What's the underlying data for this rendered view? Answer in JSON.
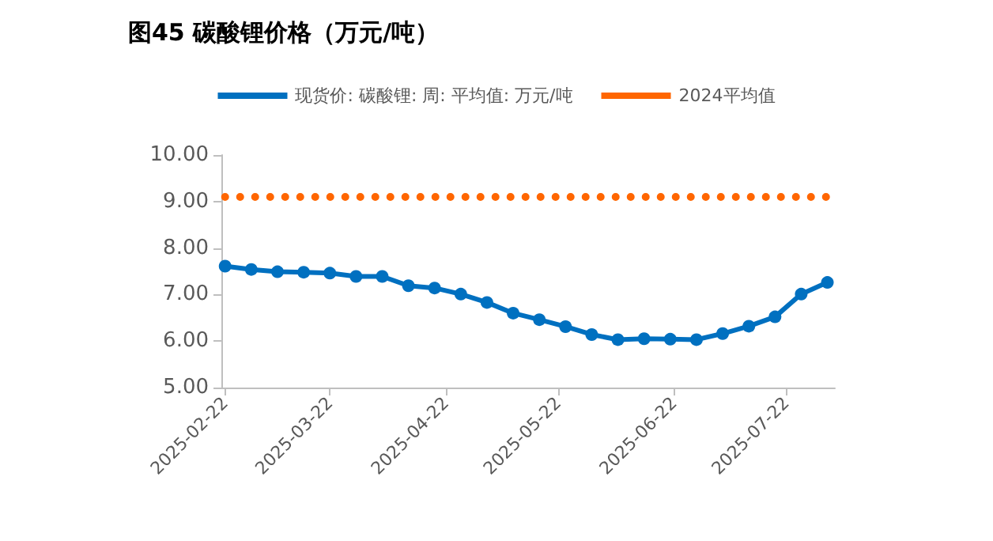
{
  "chart_data": {
    "type": "line",
    "title": "图45 碳酸锂价格（万元/吨）",
    "x": [
      "2025-02-22",
      "2025-03-01",
      "2025-03-08",
      "2025-03-15",
      "2025-03-22",
      "2025-03-29",
      "2025-04-05",
      "2025-04-12",
      "2025-04-19",
      "2025-04-26",
      "2025-05-03",
      "2025-05-10",
      "2025-05-17",
      "2025-05-24",
      "2025-05-31",
      "2025-06-07",
      "2025-06-14",
      "2025-06-21",
      "2025-06-28",
      "2025-07-05",
      "2025-07-12",
      "2025-07-19",
      "2025-07-26",
      "2025-08-02"
    ],
    "series": [
      {
        "name": "现货价: 碳酸锂: 周: 平均值: 万元/吨",
        "color": "#0070c0",
        "marker": "circle",
        "line_style": "solid",
        "values": [
          7.61,
          7.54,
          7.49,
          7.48,
          7.46,
          7.39,
          7.39,
          7.19,
          7.14,
          7.01,
          6.83,
          6.6,
          6.46,
          6.31,
          6.14,
          6.03,
          6.05,
          6.04,
          6.03,
          6.16,
          6.32,
          6.52,
          7.01,
          7.26
        ]
      },
      {
        "name": "2024平均值",
        "color": "#ff6600",
        "marker": "none",
        "line_style": "dotted",
        "values": [
          9.1,
          9.1,
          9.1,
          9.1,
          9.1,
          9.1,
          9.1,
          9.1,
          9.1,
          9.1,
          9.1,
          9.1,
          9.1,
          9.1,
          9.1,
          9.1,
          9.1,
          9.1,
          9.1,
          9.1,
          9.1,
          9.1,
          9.1,
          9.1
        ]
      }
    ],
    "xlim": [
      "2025-02-21",
      "2025-08-04"
    ],
    "xticks": [
      {
        "value": "2025-02-22",
        "label": "2025-02-22"
      },
      {
        "value": "2025-03-22",
        "label": "2025-03-22"
      },
      {
        "value": "2025-04-22",
        "label": "2025-04-22"
      },
      {
        "value": "2025-05-22",
        "label": "2025-05-22"
      },
      {
        "value": "2025-06-22",
        "label": "2025-06-22"
      },
      {
        "value": "2025-07-22",
        "label": "2025-07-22"
      }
    ],
    "ylim": [
      5,
      10
    ],
    "yticks": [
      {
        "value": 5,
        "label": "5.00"
      },
      {
        "value": 6,
        "label": "6.00"
      },
      {
        "value": 7,
        "label": "7.00"
      },
      {
        "value": 8,
        "label": "8.00"
      },
      {
        "value": 9,
        "label": "9.00"
      },
      {
        "value": 10,
        "label": "10.00"
      }
    ],
    "grid": false,
    "legend": "top"
  }
}
